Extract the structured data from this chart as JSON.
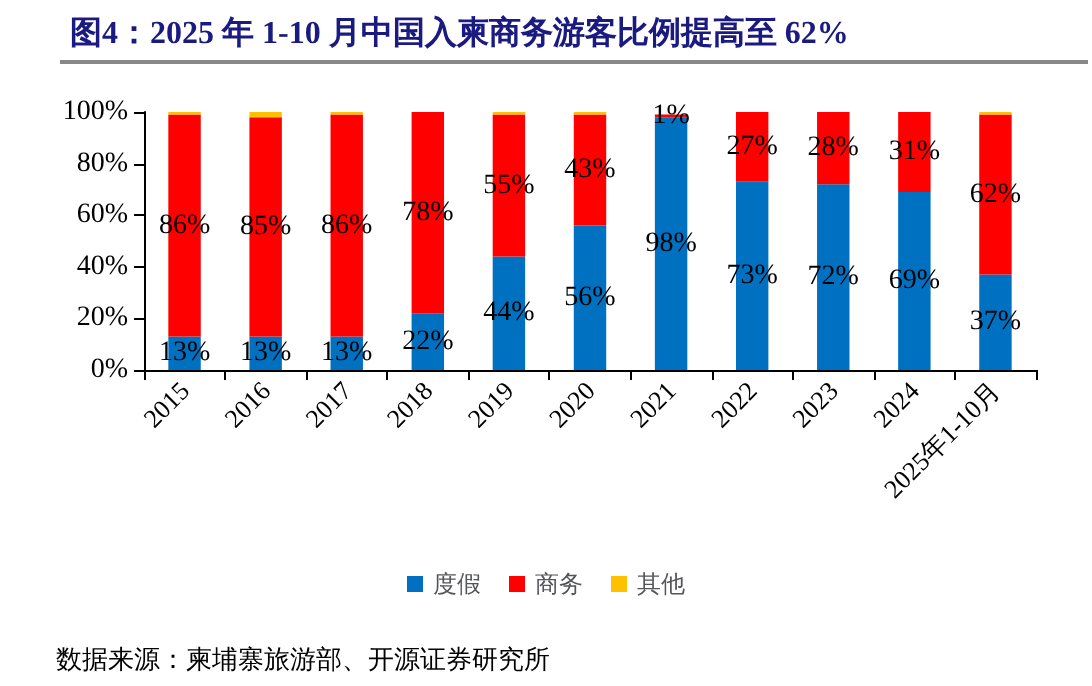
{
  "chart_data": {
    "type": "bar",
    "title": "图4：2025 年 1-10 月中国入柬商务游客比例提高至 62%",
    "stacked": true,
    "categories": [
      "2015",
      "2016",
      "2017",
      "2018",
      "2019",
      "2020",
      "2021",
      "2022",
      "2023",
      "2024",
      "2025年1-10月"
    ],
    "series": [
      {
        "name": "度假",
        "color": "#0070c0",
        "values": [
          13,
          13,
          13,
          22,
          44,
          56,
          98,
          73,
          72,
          69,
          37
        ],
        "value_labels": [
          "13%",
          "13%",
          "13%",
          "22%",
          "44%",
          "56%",
          "98%",
          "73%",
          "72%",
          "69%",
          "37%"
        ]
      },
      {
        "name": "商务",
        "color": "#ff0000",
        "values": [
          86,
          85,
          86,
          78,
          55,
          43,
          1,
          27,
          28,
          31,
          62
        ],
        "value_labels": [
          "86%",
          "85%",
          "86%",
          "78%",
          "55%",
          "43%",
          "1%",
          "27%",
          "28%",
          "31%",
          "62%"
        ]
      },
      {
        "name": "其他",
        "color": "#ffc000",
        "values": [
          1,
          2,
          1,
          0,
          1,
          1,
          null,
          0,
          0,
          0,
          1
        ]
      }
    ],
    "ylim": [
      0,
      100
    ],
    "yticks": [
      {
        "value": 0,
        "label": "0%"
      },
      {
        "value": 20,
        "label": "20%"
      },
      {
        "value": 40,
        "label": "40%"
      },
      {
        "value": 60,
        "label": "60%"
      },
      {
        "value": 80,
        "label": "80%"
      },
      {
        "value": 100,
        "label": "100%"
      }
    ],
    "grid": false,
    "legend": "bottom",
    "annotations": [
      "数据来源：柬埔寨旅游部、开源证券研究所"
    ]
  }
}
